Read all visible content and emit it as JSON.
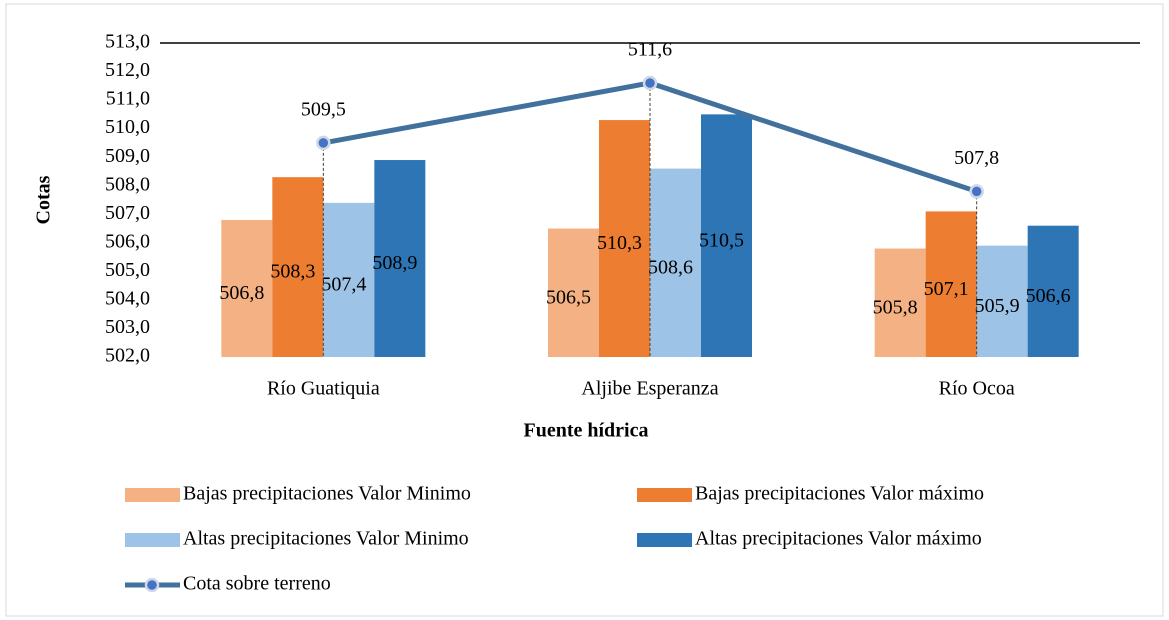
{
  "chart_data": {
    "type": "bar",
    "y_label": "Cotas",
    "x_label": "Fuente hídrica",
    "categories": [
      "Río Guatiquia",
      "Aljibe Esperanza",
      "Río Ocoa"
    ],
    "series": [
      {
        "name": "Bajas precipitaciones Valor Minimo",
        "color": "#f4b183",
        "values": [
          506.8,
          506.5,
          505.8
        ],
        "value_labels": [
          "506,8",
          "506,5",
          "505,8"
        ]
      },
      {
        "name": "Bajas precipitaciones Valor máximo",
        "color": "#ed7d31",
        "values": [
          508.3,
          510.3,
          507.1
        ],
        "value_labels": [
          "508,3",
          "510,3",
          "507,1"
        ]
      },
      {
        "name": "Altas precipitaciones Valor Minimo",
        "color": "#9dc3e6",
        "values": [
          507.4,
          508.6,
          505.9
        ],
        "value_labels": [
          "507,4",
          "508,6",
          "505,9"
        ]
      },
      {
        "name": "Altas precipitaciones Valor máximo",
        "color": "#2e75b6",
        "values": [
          508.9,
          510.5,
          506.6
        ],
        "value_labels": [
          "508,9",
          "510,5",
          "506,6"
        ]
      },
      {
        "name": "Cota sobre terreno",
        "type": "line",
        "color": "#41719c",
        "values": [
          509.5,
          511.6,
          507.8
        ],
        "value_labels": [
          "509,5",
          "511,6",
          "507,8"
        ]
      }
    ],
    "ylim": [
      502,
      513
    ],
    "yticks": [
      {
        "value": 502,
        "label": "502,0"
      },
      {
        "value": 503,
        "label": "503,0"
      },
      {
        "value": 504,
        "label": "504,0"
      },
      {
        "value": 505,
        "label": "505,0"
      },
      {
        "value": 506,
        "label": "506,0"
      },
      {
        "value": 507,
        "label": "507,0"
      },
      {
        "value": 508,
        "label": "508,0"
      },
      {
        "value": 509,
        "label": "509,0"
      },
      {
        "value": 510,
        "label": "510,0"
      },
      {
        "value": 511,
        "label": "511,0"
      },
      {
        "value": 512,
        "label": "512,0"
      },
      {
        "value": 513,
        "label": "513,0"
      }
    ],
    "legend": "bottom"
  }
}
